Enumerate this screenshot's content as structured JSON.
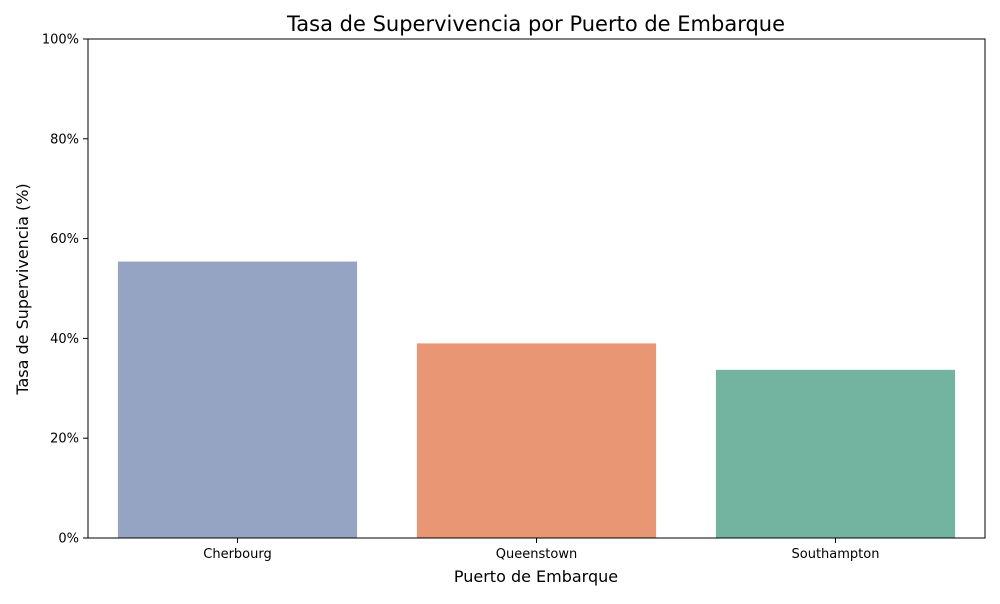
{
  "chart_data": {
    "type": "bar",
    "title": "Tasa de Supervivencia por Puerto de Embarque",
    "xlabel": "Puerto de Embarque",
    "ylabel": "Tasa de Supervivencia (%)",
    "categories": [
      "Cherbourg",
      "Queenstown",
      "Southampton"
    ],
    "values": [
      55.4,
      39.0,
      33.7
    ],
    "colors": [
      "#95a4c2",
      "#e99675",
      "#73b4a0"
    ],
    "ylim": [
      0,
      100
    ],
    "yticks": [
      0,
      20,
      40,
      60,
      80,
      100
    ],
    "ytick_labels": [
      "0%",
      "20%",
      "40%",
      "60%",
      "80%",
      "100%"
    ],
    "grid": false,
    "legend": "none"
  }
}
